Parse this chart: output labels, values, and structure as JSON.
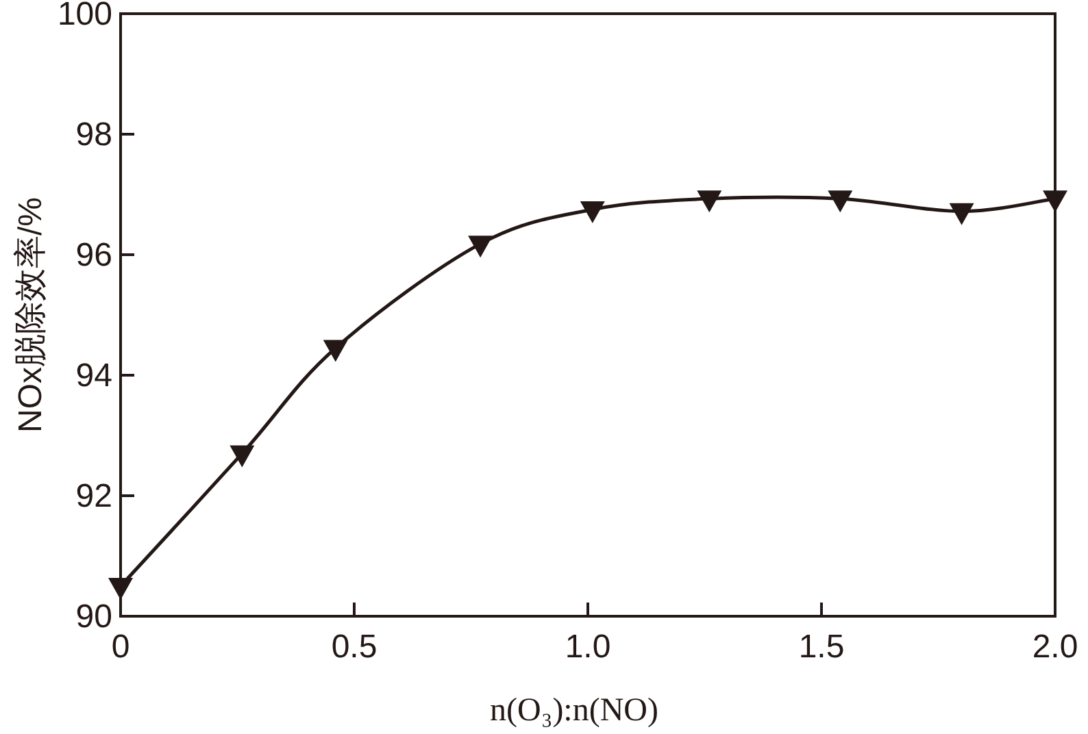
{
  "chart_data": {
    "type": "line",
    "xlabel": "n(O₃):n(NO)",
    "ylabel": "NOx脱除效率/%",
    "x": [
      0,
      0.26,
      0.46,
      0.77,
      1.01,
      1.26,
      1.54,
      1.8,
      2.0
    ],
    "values": [
      90.5,
      92.7,
      94.45,
      96.18,
      96.75,
      96.93,
      96.93,
      96.72,
      96.93
    ],
    "color": "#231815",
    "marker": "triangle",
    "line_style": "solid",
    "grid": false,
    "xlim": [
      0,
      2
    ],
    "xticks": [
      0,
      0.5,
      {
        "value": 1,
        "label": "1.0"
      },
      {
        "value": 1.5,
        "label": "1.5"
      },
      {
        "value": 2,
        "label": "2.0"
      }
    ],
    "ylim": [
      90,
      100
    ],
    "yticks": [
      90,
      92,
      94,
      96,
      98,
      100
    ]
  }
}
